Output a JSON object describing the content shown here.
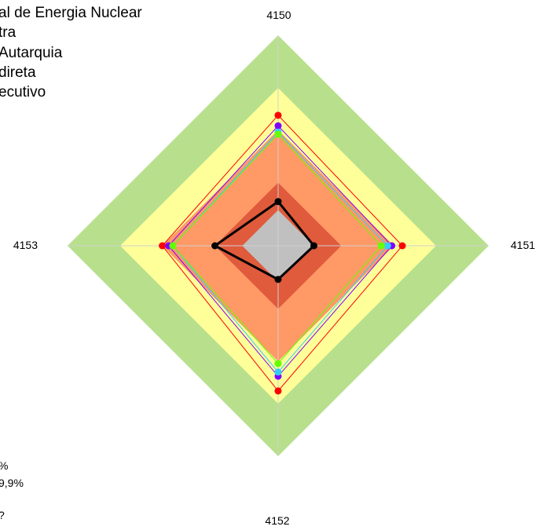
{
  "legend": {
    "lines": [
      "al de Energia Nuclear",
      "tra",
      " Autarquia",
      "direta",
      "ecutivo"
    ]
  },
  "left_cut_text": [
    "%",
    "9,9%",
    "?"
  ],
  "chart_data": {
    "type": "radar",
    "axes": [
      "4150",
      "4151",
      "4152",
      "4153"
    ],
    "rlim": [
      0,
      100
    ],
    "bands": [
      {
        "to": 100,
        "color": "#b8e08c"
      },
      {
        "to": 75,
        "color": "#ffff99"
      },
      {
        "to": 55,
        "color": "#ff9966"
      },
      {
        "to": 30,
        "color": "#e05a3c"
      },
      {
        "to": 17,
        "color": "#c0c0c0"
      }
    ],
    "series": [
      {
        "color": "#ff0000",
        "values": [
          62,
          59,
          69,
          55
        ]
      },
      {
        "color": "#7f00ff",
        "values": [
          57,
          54,
          62,
          52
        ]
      },
      {
        "color": "#33ccff",
        "values": [
          54,
          52,
          60,
          50
        ]
      },
      {
        "color": "#66ff00",
        "values": [
          53,
          49,
          56,
          50
        ]
      },
      {
        "color": "#000000",
        "values": [
          21,
          17,
          16,
          30
        ]
      }
    ]
  }
}
